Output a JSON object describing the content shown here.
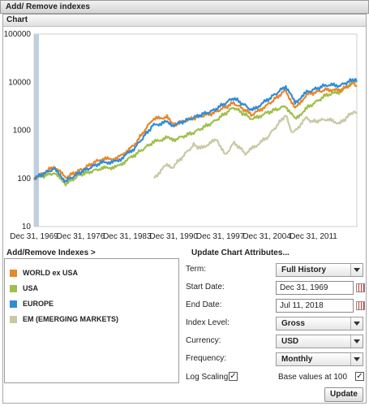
{
  "header": {
    "title": "Add/ Remove indexes"
  },
  "chart_panel": {
    "title": "Chart"
  },
  "chart_data": {
    "type": "line",
    "yscale": "log",
    "ylim": [
      10,
      100000
    ],
    "y_ticks": [
      "100000",
      "10000",
      "1000",
      "100",
      "10"
    ],
    "x_ticks": [
      "Dec 31, 1969",
      "Dec 31, 1976",
      "Dec 31, 1983",
      "Dec 31, 1990",
      "Dec 31, 1997",
      "Dec 31, 2004",
      "Dec 31, 2011"
    ],
    "xlim": [
      "1969-12-31",
      "2018-07-11"
    ],
    "series": [
      {
        "name": "WORLD ex USA",
        "color": "#e8862a",
        "x": [
          "1969-12-31",
          "1972-12-31",
          "1974-09-30",
          "1976-12-31",
          "1979-12-31",
          "1982-06-30",
          "1984-12-31",
          "1987-10-31",
          "1989-12-31",
          "1990-10-31",
          "1993-12-31",
          "1996-12-31",
          "1999-12-31",
          "2002-10-31",
          "2004-12-31",
          "2007-10-31",
          "2009-03-31",
          "2010-12-31",
          "2013-12-31",
          "2015-12-31",
          "2018-01-31",
          "2018-07-11"
        ],
        "y": [
          100,
          175,
          105,
          150,
          250,
          260,
          480,
          1700,
          1900,
          1300,
          1800,
          2300,
          3700,
          2100,
          3300,
          6800,
          2800,
          5600,
          7000,
          6800,
          9500,
          8200
        ]
      },
      {
        "name": "USA",
        "color": "#9fbf4a",
        "x": [
          "1969-12-31",
          "1972-12-31",
          "1974-09-30",
          "1976-12-31",
          "1979-12-31",
          "1982-06-30",
          "1984-12-31",
          "1987-10-31",
          "1989-12-31",
          "1990-10-31",
          "1993-12-31",
          "1996-12-31",
          "1999-12-31",
          "2002-10-31",
          "2004-12-31",
          "2007-10-31",
          "2009-03-31",
          "2010-12-31",
          "2013-12-31",
          "2015-12-31",
          "2018-01-31",
          "2018-07-11"
        ],
        "y": [
          100,
          130,
          78,
          120,
          160,
          175,
          300,
          560,
          700,
          620,
          900,
          1500,
          3000,
          1700,
          2300,
          3200,
          1700,
          2900,
          5500,
          6300,
          10500,
          10800
        ]
      },
      {
        "name": "EUROPE",
        "color": "#2f8dd8",
        "x": [
          "1969-12-31",
          "1972-12-31",
          "1974-09-30",
          "1976-12-31",
          "1979-12-31",
          "1982-06-30",
          "1984-12-31",
          "1987-10-31",
          "1989-12-31",
          "1990-10-31",
          "1993-12-31",
          "1996-12-31",
          "1999-12-31",
          "2002-10-31",
          "2004-12-31",
          "2007-10-31",
          "2009-03-31",
          "2010-12-31",
          "2013-12-31",
          "2015-12-31",
          "2018-01-31",
          "2018-07-11"
        ],
        "y": [
          100,
          160,
          88,
          135,
          210,
          225,
          410,
          1250,
          1500,
          1250,
          1850,
          2600,
          4700,
          2600,
          4200,
          8200,
          3800,
          6200,
          8800,
          8500,
          11500,
          10200
        ]
      },
      {
        "name": "EM (EMERGING MARKETS)",
        "color": "#c8c9a4",
        "x": [
          "1987-12-31",
          "1989-12-31",
          "1990-10-31",
          "1993-12-31",
          "1994-12-31",
          "1997-06-30",
          "1998-09-30",
          "2000-01-31",
          "2001-09-30",
          "2004-12-31",
          "2007-10-31",
          "2008-10-31",
          "2010-12-31",
          "2011-09-30",
          "2013-12-31",
          "2015-12-31",
          "2018-01-31",
          "2018-07-11"
        ],
        "y": [
          100,
          200,
          170,
          500,
          420,
          650,
          300,
          560,
          330,
          700,
          2100,
          850,
          1850,
          1500,
          1700,
          1400,
          2500,
          2200
        ]
      }
    ]
  },
  "legend": {
    "title": "Add/Remove Indexes >",
    "items": [
      {
        "label": "WORLD ex USA",
        "color": "#e8862a"
      },
      {
        "label": "USA",
        "color": "#9fbf4a"
      },
      {
        "label": "EUROPE",
        "color": "#2f8dd8"
      },
      {
        "label": "EM (EMERGING MARKETS)",
        "color": "#c8c9a4"
      }
    ]
  },
  "attributes": {
    "title": "Update Chart Attributes...",
    "term_label": "Term:",
    "term_value": "Full History",
    "start_label": "Start Date:",
    "start_value": "Dec 31, 1969",
    "end_label": "End Date:",
    "end_value": "Jul 11, 2018",
    "index_level_label": "Index Level:",
    "index_level_value": "Gross",
    "currency_label": "Currency:",
    "currency_value": "USD",
    "frequency_label": "Frequency:",
    "frequency_value": "Monthly",
    "log_scaling_label": "Log Scaling",
    "log_scaling_checked": true,
    "base_values_label": "Base values at 100",
    "base_values_checked": true,
    "update_label": "Update",
    "check_mark": "✓"
  }
}
